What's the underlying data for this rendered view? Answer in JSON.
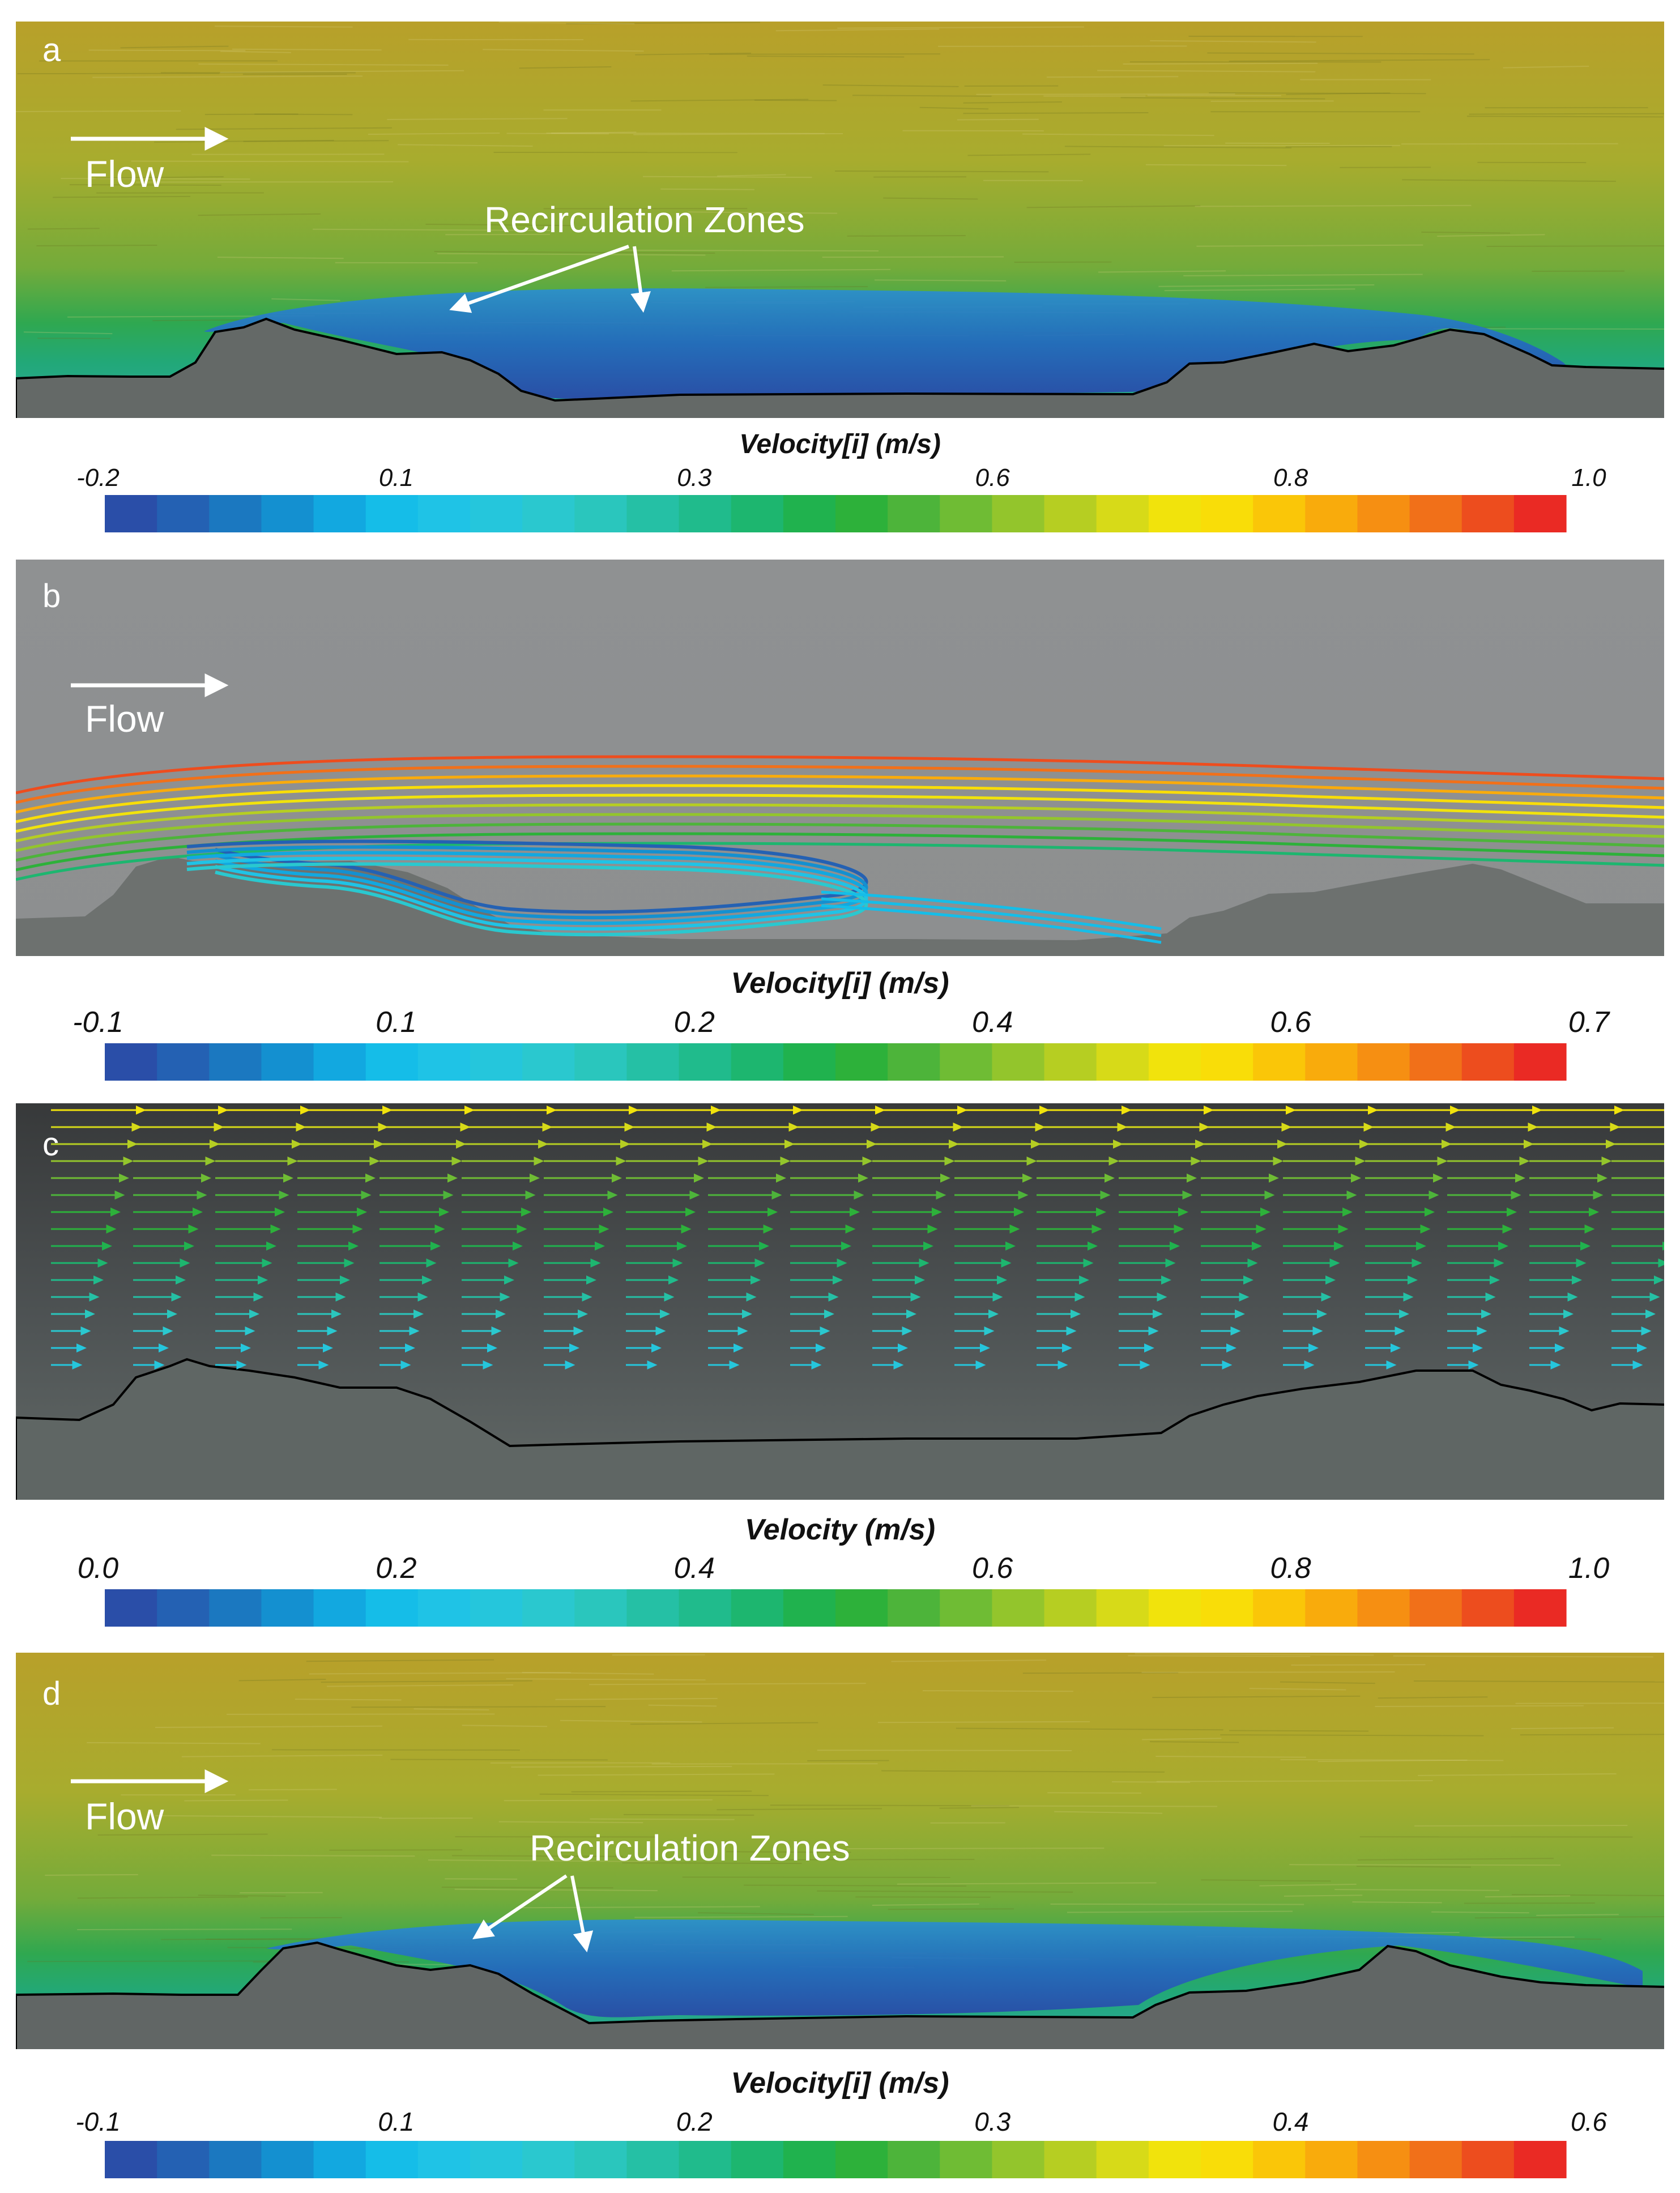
{
  "panels": [
    {
      "id": "a",
      "letter": "a",
      "kind": "streak",
      "flow_label": "Flow",
      "annotation": "Recirculation Zones",
      "colorbar": {
        "title": "Velocity[i] (m/s)",
        "ticks": [
          {
            "value": -0.2,
            "label": "-0.2"
          },
          {
            "value": 0.1,
            "label": "0.1"
          },
          {
            "value": 0.3,
            "label": "0.3"
          },
          {
            "value": 0.6,
            "label": "0.6"
          },
          {
            "value": 0.8,
            "label": "0.8"
          },
          {
            "value": 1.0,
            "label": "1.0"
          }
        ]
      }
    },
    {
      "id": "b",
      "letter": "b",
      "kind": "streamlines",
      "flow_label": "Flow",
      "annotation": "",
      "colorbar": {
        "title": "Velocity[i] (m/s)",
        "ticks": [
          {
            "value": -0.1,
            "label": "-0.1"
          },
          {
            "value": 0.1,
            "label": "0.1"
          },
          {
            "value": 0.2,
            "label": "0.2"
          },
          {
            "value": 0.4,
            "label": "0.4"
          },
          {
            "value": 0.6,
            "label": "0.6"
          },
          {
            "value": 0.7,
            "label": "0.7"
          }
        ]
      }
    },
    {
      "id": "c",
      "letter": "c",
      "kind": "vectors",
      "flow_label": "",
      "annotation": "",
      "colorbar": {
        "title": "Velocity (m/s)",
        "ticks": [
          {
            "value": 0.0,
            "label": "0.0"
          },
          {
            "value": 0.2,
            "label": "0.2"
          },
          {
            "value": 0.4,
            "label": "0.4"
          },
          {
            "value": 0.6,
            "label": "0.6"
          },
          {
            "value": 0.8,
            "label": "0.8"
          },
          {
            "value": 1.0,
            "label": "1.0"
          }
        ]
      }
    },
    {
      "id": "d",
      "letter": "d",
      "kind": "streak",
      "flow_label": "Flow",
      "annotation": "Recirculation Zones",
      "colorbar": {
        "title": "Velocity[i] (m/s)",
        "ticks": [
          {
            "value": -0.1,
            "label": "-0.1"
          },
          {
            "value": 0.1,
            "label": "0.1"
          },
          {
            "value": 0.2,
            "label": "0.2"
          },
          {
            "value": 0.3,
            "label": "0.3"
          },
          {
            "value": 0.4,
            "label": "0.4"
          },
          {
            "value": 0.6,
            "label": "0.6"
          }
        ]
      }
    }
  ],
  "colormap": [
    "#2a4ea8",
    "#2461b3",
    "#1b78c0",
    "#1490d0",
    "#12a8e0",
    "#15bde8",
    "#1fc3e6",
    "#25c6dc",
    "#2ac8cf",
    "#2ac6bd",
    "#25c0a5",
    "#20bb8c",
    "#1db66f",
    "#20b24e",
    "#2db13a",
    "#4db43a",
    "#6fbc34",
    "#93c52c",
    "#b6ce22",
    "#d7da18",
    "#f1e30c",
    "#f9dd08",
    "#fac608",
    "#f9ab0c",
    "#f68f12",
    "#f17019",
    "#ed4d1e",
    "#ea2a24"
  ]
}
